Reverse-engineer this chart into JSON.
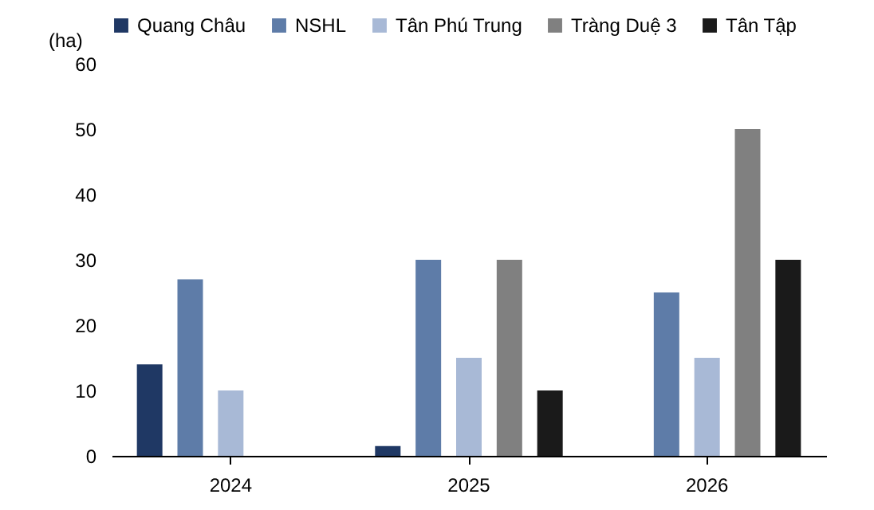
{
  "chart_data": {
    "type": "bar",
    "ylabel": "(ha)",
    "categories": [
      "2024",
      "2025",
      "2026"
    ],
    "series": [
      {
        "name": "Quang Châu",
        "color": "#1f3864",
        "values": [
          14,
          1.5,
          null
        ]
      },
      {
        "name": "NSHL",
        "color": "#5e7ca8",
        "values": [
          27,
          30,
          25
        ]
      },
      {
        "name": "Tân Phú Trung",
        "color": "#a8b9d6",
        "values": [
          10,
          15,
          15
        ]
      },
      {
        "name": "Tràng Duệ 3",
        "color": "#808080",
        "values": [
          null,
          30,
          50
        ]
      },
      {
        "name": "Tân Tập",
        "color": "#1a1a1a",
        "values": [
          null,
          10,
          30
        ]
      }
    ],
    "ylim": [
      0,
      60
    ],
    "yticks": [
      0,
      10,
      20,
      30,
      40,
      50,
      60
    ],
    "grid": false,
    "legend": "top"
  }
}
